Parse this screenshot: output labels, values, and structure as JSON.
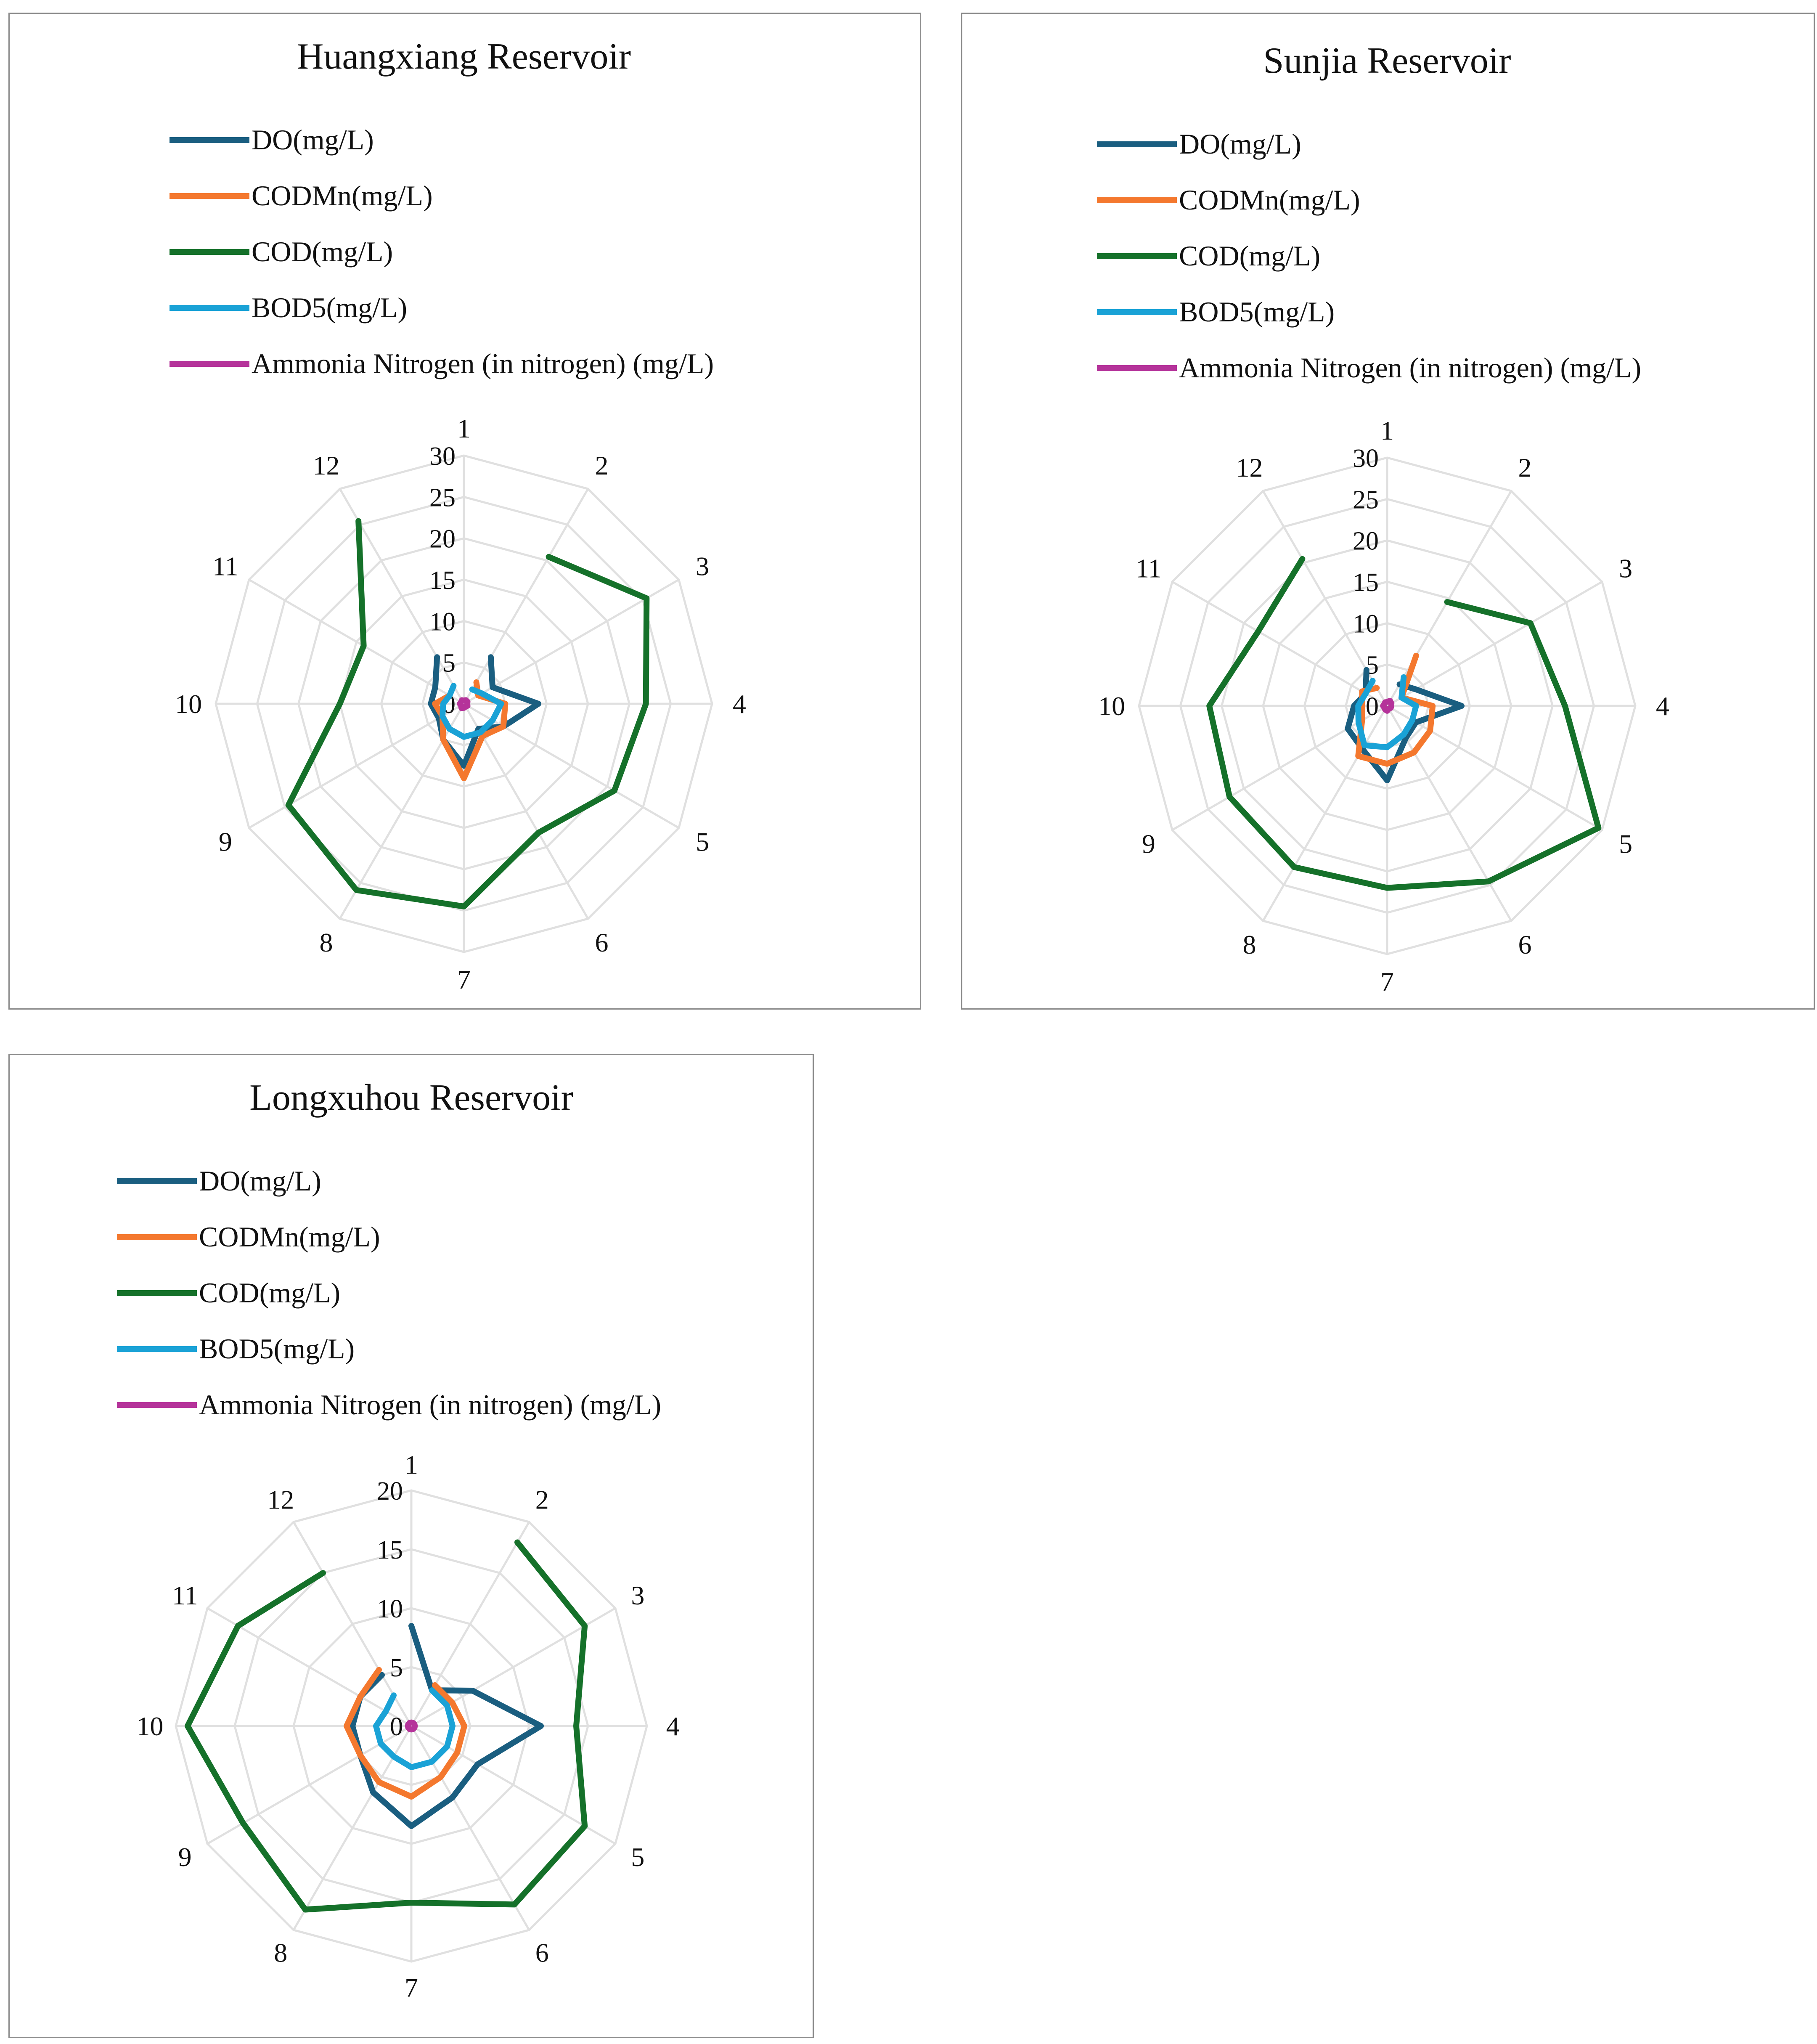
{
  "colors": {
    "do": "#1a5e80",
    "codmn": "#f4782e",
    "cod": "#15712a",
    "bod5": "#1aa2d6",
    "ammonia": "#b5339a",
    "grid": "#e0e0e0",
    "border": "#8c8c8c"
  },
  "chart_data": [
    {
      "type": "radar",
      "title": "Huangxiang Reservoir",
      "categories": [
        "1",
        "2",
        "3",
        "4",
        "5",
        "6",
        "7",
        "8",
        "9",
        "10",
        "11",
        "12"
      ],
      "rlim": [
        0,
        30
      ],
      "ticks": [
        "0",
        "5",
        "10",
        "15",
        "20",
        "25",
        "30"
      ],
      "grid": true,
      "legend": "top-left",
      "series": [
        {
          "name": "DO(mg/L)",
          "values": [
            null,
            6.5,
            4.0,
            9.0,
            5.5,
            3.5,
            7.5,
            5.0,
            3.5,
            4.0,
            4.0,
            6.5
          ]
        },
        {
          "name": "CODMn(mg/L)",
          "values": [
            null,
            3.0,
            2.0,
            5.0,
            5.5,
            4.5,
            9.0,
            5.0,
            3.0,
            3.5,
            2.0,
            null
          ]
        },
        {
          "name": "COD(mg/L)",
          "values": [
            null,
            20.5,
            25.5,
            22.0,
            21.0,
            18.0,
            24.5,
            26.0,
            24.5,
            15.0,
            14.0,
            25.5
          ]
        },
        {
          "name": "BOD5(mg/L)",
          "values": [
            null,
            2.0,
            2.5,
            4.5,
            4.0,
            4.0,
            4.0,
            3.5,
            3.0,
            2.5,
            2.0,
            2.5
          ]
        },
        {
          "name": "Ammonia Nitrogen (in nitrogen)  (mg/L)",
          "values": [
            0.4,
            0.5,
            0.5,
            0.4,
            0.5,
            0.4,
            0.5,
            0.6,
            0.4,
            0.5,
            0.4,
            0.5
          ]
        }
      ]
    },
    {
      "type": "radar",
      "title": "Sunjia Reservoir",
      "categories": [
        "1",
        "2",
        "3",
        "4",
        "5",
        "6",
        "7",
        "8",
        "9",
        "10",
        "11",
        "12"
      ],
      "rlim": [
        0,
        30
      ],
      "ticks": [
        "0",
        "5",
        "10",
        "15",
        "20",
        "25",
        "30"
      ],
      "grid": true,
      "legend": "top-left",
      "series": [
        {
          "name": "DO(mg/L)",
          "values": [
            null,
            3.0,
            4.0,
            9.0,
            4.0,
            4.5,
            9.0,
            6.0,
            5.5,
            4.0,
            3.0,
            5.0
          ]
        },
        {
          "name": "CODMn(mg/L)",
          "values": [
            null,
            7.0,
            2.0,
            5.5,
            6.0,
            6.5,
            7.0,
            7.0,
            3.5,
            3.0,
            3.5,
            2.5
          ]
        },
        {
          "name": "COD(mg/L)",
          "values": [
            null,
            14.5,
            20.0,
            21.5,
            29.5,
            24.5,
            22.0,
            22.5,
            22.0,
            21.5,
            18.0,
            20.5
          ]
        },
        {
          "name": "BOD5(mg/L)",
          "values": [
            null,
            4.0,
            2.0,
            3.5,
            3.5,
            4.0,
            5.0,
            5.5,
            4.0,
            3.5,
            3.0,
            3.5
          ]
        },
        {
          "name": "Ammonia Nitrogen (in nitrogen)  (mg/L)",
          "values": [
            0.5,
            0.7,
            0.6,
            0.5,
            0.5,
            0.4,
            0.6,
            0.5,
            0.4,
            0.5,
            0.4,
            0.5
          ]
        }
      ]
    },
    {
      "type": "radar",
      "title": "Longxuhou Reservoir",
      "categories": [
        "1",
        "2",
        "3",
        "4",
        "5",
        "6",
        "7",
        "8",
        "9",
        "10",
        "11",
        "12"
      ],
      "rlim": [
        0,
        20
      ],
      "ticks": [
        "0",
        "5",
        "10",
        "15",
        "20"
      ],
      "grid": true,
      "legend": "top-left",
      "series": [
        {
          "name": "DO(mg/L)",
          "values": [
            8.5,
            3.5,
            6.0,
            11.0,
            6.5,
            7.0,
            8.5,
            6.5,
            5.0,
            5.0,
            5.0,
            5.0
          ]
        },
        {
          "name": "CODMn(mg/L)",
          "values": [
            null,
            4.0,
            4.0,
            4.5,
            4.5,
            5.0,
            6.0,
            5.5,
            5.0,
            5.5,
            5.0,
            5.5
          ]
        },
        {
          "name": "COD(mg/L)",
          "values": [
            null,
            18.0,
            17.0,
            14.0,
            17.0,
            17.5,
            15.0,
            18.0,
            16.5,
            19.0,
            17.0,
            15.0
          ]
        },
        {
          "name": "BOD5(mg/L)",
          "values": [
            null,
            3.5,
            3.5,
            3.5,
            3.5,
            3.5,
            3.5,
            3.0,
            3.0,
            3.0,
            2.5,
            3.0
          ]
        },
        {
          "name": "Ammonia Nitrogen (in nitrogen)  (mg/L)",
          "values": [
            0.3,
            0.3,
            0.3,
            0.3,
            0.3,
            0.3,
            0.3,
            0.3,
            0.3,
            0.3,
            0.3,
            0.3
          ]
        }
      ]
    }
  ]
}
